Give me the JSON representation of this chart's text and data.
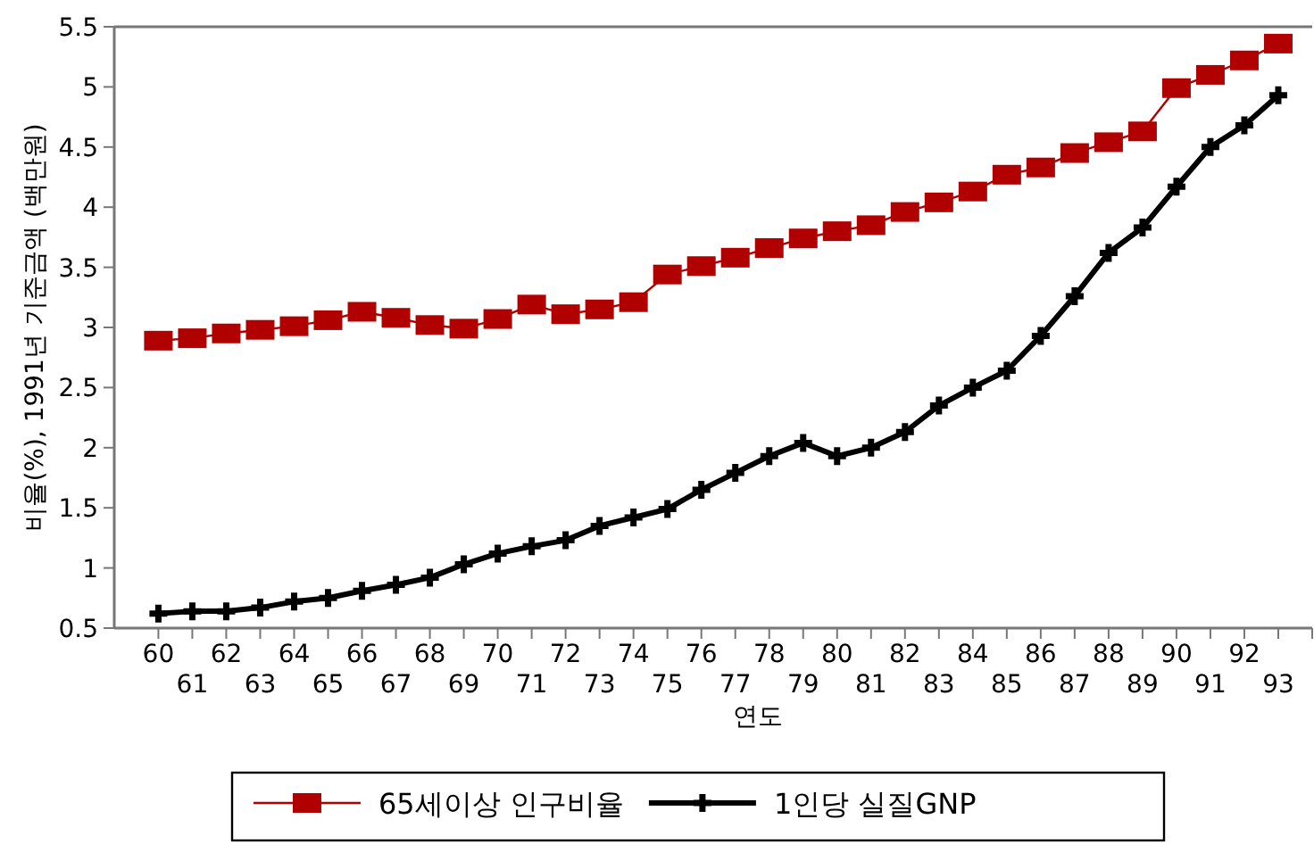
{
  "chart_data": {
    "type": "line",
    "xlabel": "연도",
    "ylabel": "비율(%),  1991년 기준금액 (백만원)",
    "categories": [
      "60",
      "61",
      "62",
      "63",
      "64",
      "65",
      "66",
      "67",
      "68",
      "69",
      "70",
      "71",
      "72",
      "73",
      "74",
      "75",
      "76",
      "77",
      "78",
      "79",
      "80",
      "81",
      "82",
      "83",
      "84",
      "85",
      "86",
      "87",
      "88",
      "89",
      "90",
      "91",
      "92",
      "93"
    ],
    "series": [
      {
        "name": "65세이상 인구비율",
        "color": "#b00000",
        "marker": "square",
        "values": [
          2.89,
          2.91,
          2.95,
          2.98,
          3.01,
          3.06,
          3.13,
          3.08,
          3.02,
          2.99,
          3.07,
          3.19,
          3.11,
          3.15,
          3.21,
          3.44,
          3.51,
          3.58,
          3.66,
          3.74,
          3.8,
          3.85,
          3.96,
          4.04,
          4.13,
          4.27,
          4.33,
          4.45,
          4.54,
          4.63,
          4.99,
          5.1,
          5.22,
          5.36
        ]
      },
      {
        "name": "1인당 실질GNP",
        "color": "#000000",
        "marker": "cross",
        "values": [
          0.62,
          0.64,
          0.64,
          0.67,
          0.72,
          0.75,
          0.81,
          0.86,
          0.92,
          1.03,
          1.12,
          1.18,
          1.23,
          1.35,
          1.42,
          1.49,
          1.65,
          1.79,
          1.93,
          2.04,
          1.93,
          2.0,
          2.13,
          2.35,
          2.5,
          2.64,
          2.93,
          3.26,
          3.62,
          3.83,
          4.17,
          4.5,
          4.68,
          4.93
        ]
      }
    ],
    "ylim": [
      0.5,
      5.5
    ],
    "yticks": [
      0.5,
      1,
      1.5,
      2,
      2.5,
      3,
      3.5,
      4,
      4.5,
      5,
      5.5
    ],
    "grid": false,
    "legend": "bottom"
  }
}
